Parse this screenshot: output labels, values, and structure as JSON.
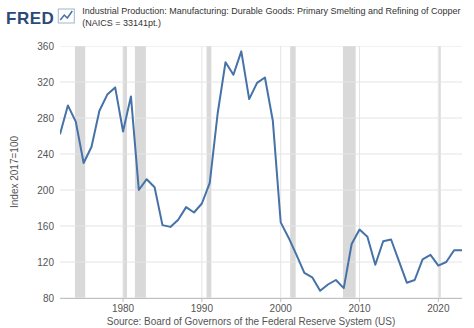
{
  "chart_data": {
    "type": "line",
    "logo_text": "FRED",
    "title": "Industrial Production: Manufacturing: Durable Goods: Primary Smelting and Refining of Copper (NAICS = 33141pt.)",
    "y_label": "Index 2017=100",
    "source": "Source: Board of Governors of the Federal Reserve System (US)",
    "x": [
      1972,
      1973,
      1974,
      1975,
      1976,
      1977,
      1978,
      1979,
      1980,
      1981,
      1982,
      1983,
      1984,
      1985,
      1986,
      1987,
      1988,
      1989,
      1990,
      1991,
      1992,
      1993,
      1994,
      1995,
      1996,
      1997,
      1998,
      1999,
      2000,
      2001,
      2002,
      2003,
      2004,
      2005,
      2006,
      2007,
      2008,
      2009,
      2010,
      2011,
      2012,
      2013,
      2014,
      2015,
      2016,
      2017,
      2018,
      2019,
      2020,
      2021,
      2022,
      2023
    ],
    "values": [
      262,
      294,
      276,
      230,
      248,
      288,
      306,
      314,
      265,
      304,
      200,
      212,
      203,
      161,
      159,
      167,
      181,
      175,
      185,
      208,
      285,
      342,
      328,
      354,
      301,
      319,
      325,
      277,
      164,
      147,
      128,
      108,
      103,
      88,
      95,
      100,
      91,
      140,
      156,
      148,
      117,
      143,
      145,
      121,
      97,
      100,
      123,
      128,
      116,
      120,
      133,
      133
    ],
    "color": "#4572a7",
    "recessions": [
      {
        "start": 1973.9,
        "end": 1975.2
      },
      {
        "start": 1980.0,
        "end": 1980.5
      },
      {
        "start": 1981.5,
        "end": 1982.9
      },
      {
        "start": 1990.6,
        "end": 1991.2
      },
      {
        "start": 2001.2,
        "end": 2001.9
      },
      {
        "start": 2007.9,
        "end": 2009.5
      },
      {
        "start": 2020.1,
        "end": 2020.3
      }
    ],
    "xlim": [
      1972,
      2023
    ],
    "ylim": [
      80,
      360
    ],
    "xticks": [
      1980,
      1990,
      2000,
      2010,
      2020
    ],
    "yticks": [
      80,
      120,
      160,
      200,
      240,
      280,
      320,
      360
    ],
    "grid": true
  }
}
